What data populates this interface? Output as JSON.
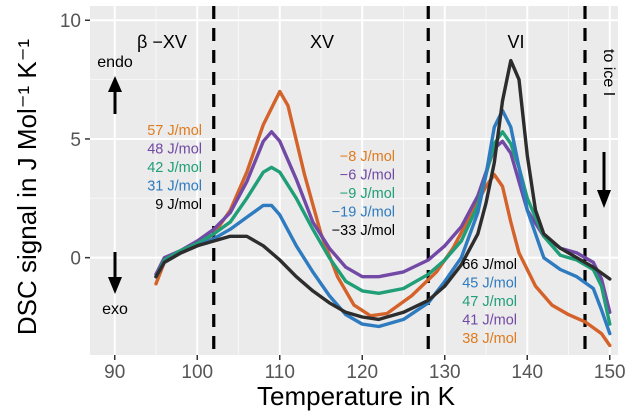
{
  "chart_data": {
    "type": "line",
    "title": "",
    "xlabel": "Temperature in K",
    "ylabel": "DSC signal in  J Mol⁻¹  K⁻¹",
    "xlim": [
      87,
      151
    ],
    "ylim": [
      -4.1,
      10.6
    ],
    "xticks": [
      90,
      100,
      110,
      120,
      130,
      140,
      150
    ],
    "yticks": [
      0,
      5,
      10
    ],
    "grid": true,
    "background": "#ebebeb",
    "vlines": [
      102,
      128,
      147
    ],
    "region_labels": [
      "β −XV",
      "XV",
      "VI"
    ],
    "side_labels": {
      "endo": "endo",
      "exo": "exo",
      "to_ice": "to ice I"
    },
    "series": [
      {
        "color": "#d4622b",
        "points": [
          [
            95,
            -1.1
          ],
          [
            96,
            -0.2
          ],
          [
            98,
            0.2
          ],
          [
            100,
            0.5
          ],
          [
            102,
            1.0
          ],
          [
            104,
            2.0
          ],
          [
            106,
            3.6
          ],
          [
            108,
            5.6
          ],
          [
            110,
            7.0
          ],
          [
            111,
            6.4
          ],
          [
            113,
            3.5
          ],
          [
            115,
            1.0
          ],
          [
            117,
            -0.8
          ],
          [
            119,
            -2.0
          ],
          [
            121,
            -2.45
          ],
          [
            123,
            -2.35
          ],
          [
            126,
            -1.6
          ],
          [
            129,
            -0.6
          ],
          [
            131,
            0.4
          ],
          [
            133,
            1.7
          ],
          [
            135,
            3.0
          ],
          [
            136,
            3.5
          ],
          [
            137,
            3.0
          ],
          [
            138,
            1.5
          ],
          [
            139,
            0.2
          ],
          [
            141,
            -1.2
          ],
          [
            143,
            -2.0
          ],
          [
            145,
            -2.4
          ],
          [
            147,
            -2.7
          ],
          [
            149,
            -3.2
          ],
          [
            150,
            -3.7
          ]
        ]
      },
      {
        "color": "#7249a5",
        "points": [
          [
            95,
            -0.7
          ],
          [
            96,
            0.0
          ],
          [
            98,
            0.3
          ],
          [
            100,
            0.7
          ],
          [
            102,
            1.2
          ],
          [
            104,
            1.9
          ],
          [
            106,
            3.2
          ],
          [
            108,
            4.9
          ],
          [
            109,
            5.3
          ],
          [
            110,
            4.9
          ],
          [
            112,
            3.3
          ],
          [
            114,
            1.5
          ],
          [
            116,
            0.4
          ],
          [
            118,
            -0.4
          ],
          [
            120,
            -0.8
          ],
          [
            122,
            -0.8
          ],
          [
            125,
            -0.6
          ],
          [
            128,
            -0.1
          ],
          [
            130,
            0.5
          ],
          [
            132,
            1.3
          ],
          [
            134,
            2.6
          ],
          [
            135,
            3.6
          ],
          [
            136,
            4.6
          ],
          [
            137,
            4.9
          ],
          [
            138,
            4.4
          ],
          [
            139,
            3.2
          ],
          [
            140,
            2.0
          ],
          [
            142,
            0.9
          ],
          [
            144,
            0.4
          ],
          [
            146,
            0.2
          ],
          [
            148,
            -0.2
          ],
          [
            149,
            -0.9
          ],
          [
            150,
            -2.3
          ]
        ]
      },
      {
        "color": "#1f9e77",
        "points": [
          [
            95,
            -0.8
          ],
          [
            96,
            -0.1
          ],
          [
            98,
            0.3
          ],
          [
            100,
            0.6
          ],
          [
            102,
            1.0
          ],
          [
            104,
            1.5
          ],
          [
            106,
            2.5
          ],
          [
            108,
            3.6
          ],
          [
            109,
            3.8
          ],
          [
            110,
            3.6
          ],
          [
            112,
            2.5
          ],
          [
            114,
            1.2
          ],
          [
            116,
            0.0
          ],
          [
            118,
            -1.0
          ],
          [
            120,
            -1.4
          ],
          [
            122,
            -1.5
          ],
          [
            125,
            -1.3
          ],
          [
            128,
            -0.7
          ],
          [
            130,
            -0.1
          ],
          [
            132,
            0.7
          ],
          [
            134,
            2.2
          ],
          [
            135,
            3.5
          ],
          [
            136,
            4.8
          ],
          [
            137,
            5.3
          ],
          [
            138,
            4.8
          ],
          [
            139,
            3.8
          ],
          [
            140,
            2.5
          ],
          [
            142,
            0.9
          ],
          [
            144,
            0.1
          ],
          [
            146,
            -0.1
          ],
          [
            148,
            -0.5
          ],
          [
            149,
            -1.2
          ],
          [
            150,
            -2.8
          ]
        ]
      },
      {
        "color": "#2e7bbf",
        "points": [
          [
            95,
            -0.8
          ],
          [
            96,
            -0.2
          ],
          [
            98,
            0.2
          ],
          [
            100,
            0.5
          ],
          [
            102,
            0.8
          ],
          [
            104,
            1.2
          ],
          [
            106,
            1.7
          ],
          [
            108,
            2.2
          ],
          [
            109,
            2.2
          ],
          [
            110,
            1.8
          ],
          [
            112,
            0.5
          ],
          [
            114,
            -0.6
          ],
          [
            116,
            -1.6
          ],
          [
            118,
            -2.4
          ],
          [
            120,
            -2.8
          ],
          [
            122,
            -2.9
          ],
          [
            125,
            -2.6
          ],
          [
            128,
            -1.9
          ],
          [
            130,
            -1.0
          ],
          [
            132,
            0.0
          ],
          [
            134,
            1.9
          ],
          [
            135,
            3.5
          ],
          [
            136,
            5.5
          ],
          [
            137,
            6.2
          ],
          [
            138,
            5.5
          ],
          [
            139,
            3.8
          ],
          [
            140,
            2.0
          ],
          [
            142,
            0.0
          ],
          [
            144,
            -0.5
          ],
          [
            146,
            -0.8
          ],
          [
            148,
            -1.3
          ],
          [
            149,
            -2.2
          ],
          [
            150,
            -3.2
          ]
        ]
      },
      {
        "color": "#2d2d2d",
        "points": [
          [
            95,
            -0.8
          ],
          [
            96,
            -0.2
          ],
          [
            98,
            0.2
          ],
          [
            100,
            0.5
          ],
          [
            102,
            0.7
          ],
          [
            104,
            0.9
          ],
          [
            106,
            0.9
          ],
          [
            108,
            0.5
          ],
          [
            110,
            -0.1
          ],
          [
            112,
            -0.8
          ],
          [
            114,
            -1.4
          ],
          [
            116,
            -1.9
          ],
          [
            118,
            -2.3
          ],
          [
            120,
            -2.5
          ],
          [
            122,
            -2.6
          ],
          [
            125,
            -2.3
          ],
          [
            128,
            -1.8
          ],
          [
            130,
            -1.2
          ],
          [
            132,
            -0.3
          ],
          [
            134,
            1.0
          ],
          [
            135,
            2.3
          ],
          [
            136,
            4.0
          ],
          [
            137,
            6.6
          ],
          [
            138,
            8.3
          ],
          [
            139,
            7.5
          ],
          [
            140,
            4.3
          ],
          [
            141,
            2.0
          ],
          [
            142,
            1.0
          ],
          [
            144,
            0.4
          ],
          [
            146,
            0.0
          ],
          [
            148,
            -0.4
          ],
          [
            150,
            -0.9
          ]
        ]
      }
    ],
    "annotations": {
      "left": [
        {
          "text": "57 J/mol",
          "color": "#e07b1f"
        },
        {
          "text": "48 J/mol",
          "color": "#7249a5"
        },
        {
          "text": "42 J/mol",
          "color": "#1f9e77"
        },
        {
          "text": "31 J/mol",
          "color": "#2e7bbf"
        },
        {
          "text": "9 J/mol",
          "color": "#000000"
        }
      ],
      "middle": [
        {
          "text": "−8 J/mol",
          "color": "#e07b1f"
        },
        {
          "text": "−6 J/mol",
          "color": "#7249a5"
        },
        {
          "text": "−9 J/mol",
          "color": "#1f9e77"
        },
        {
          "text": "−19 J/mol",
          "color": "#2e7bbf"
        },
        {
          "text": "−33 J/mol",
          "color": "#000000"
        }
      ],
      "right": [
        {
          "text": "66 J/mol",
          "color": "#000000"
        },
        {
          "text": "45 J/mol",
          "color": "#2e7bbf"
        },
        {
          "text": "47 J/mol",
          "color": "#1f9e77"
        },
        {
          "text": "41 J/mol",
          "color": "#7249a5"
        },
        {
          "text": "38 J/mol",
          "color": "#e07b1f"
        }
      ]
    }
  }
}
